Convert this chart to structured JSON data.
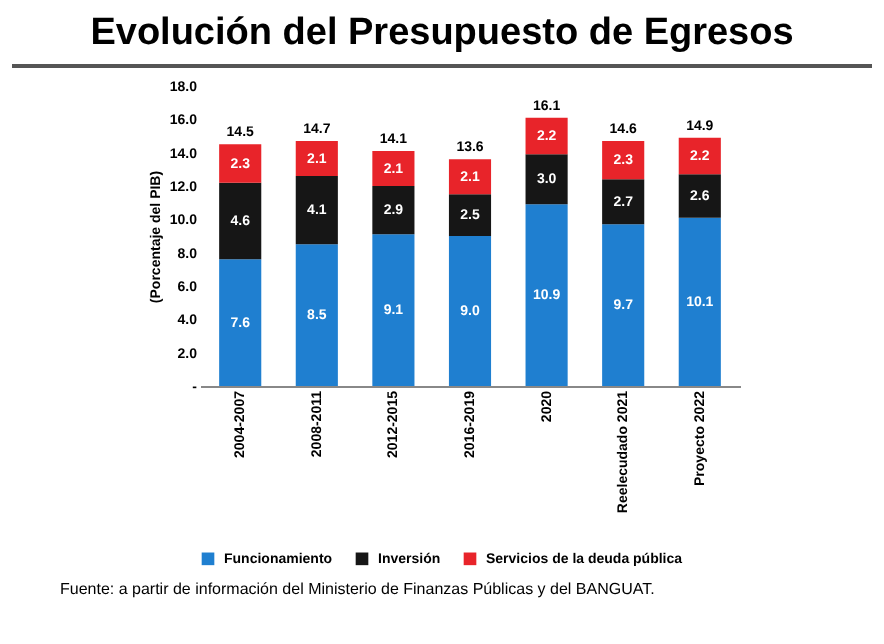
{
  "chart_data": {
    "type": "bar",
    "title": "Evolución del Presupuesto de Egresos",
    "ylabel": "(Porcentaje del PIB)",
    "categories": [
      "2004-2007",
      "2008-2011",
      "2012-2015",
      "2016-2019",
      "2020",
      "Reelecudado 2021",
      "Proyecto 2022"
    ],
    "stacked": true,
    "legend": "bottom",
    "grid": false,
    "ylim": [
      0,
      18
    ],
    "yticks": [
      {
        "value": 0,
        "label": "-"
      },
      {
        "value": 2,
        "label": "2.0"
      },
      {
        "value": 4,
        "label": "4.0"
      },
      {
        "value": 6,
        "label": "6.0"
      },
      {
        "value": 8,
        "label": "8.0"
      },
      {
        "value": 10,
        "label": "10.0"
      },
      {
        "value": 12,
        "label": "12.0"
      },
      {
        "value": 14,
        "label": "14.0"
      },
      {
        "value": 16,
        "label": "16.0"
      },
      {
        "value": 18,
        "label": "18.0"
      }
    ],
    "series": [
      {
        "name": "Funcionamiento",
        "color": "#1f7fd0",
        "values": [
          7.6,
          8.5,
          9.1,
          9.0,
          10.9,
          9.7,
          10.1
        ],
        "value_labels": [
          "7.6",
          "8.5",
          "9.1",
          "9.0",
          "10.9",
          "9.7",
          "10.1"
        ]
      },
      {
        "name": "Inversión",
        "color": "#161616",
        "values": [
          4.6,
          4.1,
          2.9,
          2.5,
          3.0,
          2.7,
          2.6
        ],
        "value_labels": [
          "4.6",
          "4.1",
          "2.9",
          "2.5",
          "3.0",
          "2.7",
          "2.6"
        ]
      },
      {
        "name": "Servicios de la deuda pública",
        "color": "#e8242a",
        "values": [
          2.3,
          2.1,
          2.1,
          2.1,
          2.2,
          2.3,
          2.2
        ],
        "value_labels": [
          "2.3",
          "2.1",
          "2.1",
          "2.1",
          "2.2",
          "2.3",
          "2.2"
        ]
      }
    ],
    "totals": [
      "14.5",
      "14.7",
      "14.1",
      "13.6",
      "16.1",
      "14.6",
      "14.9"
    ],
    "annotations": [
      "Fuente: a partir de información del Ministerio de Finanzas Públicas y del BANGUAT."
    ]
  }
}
